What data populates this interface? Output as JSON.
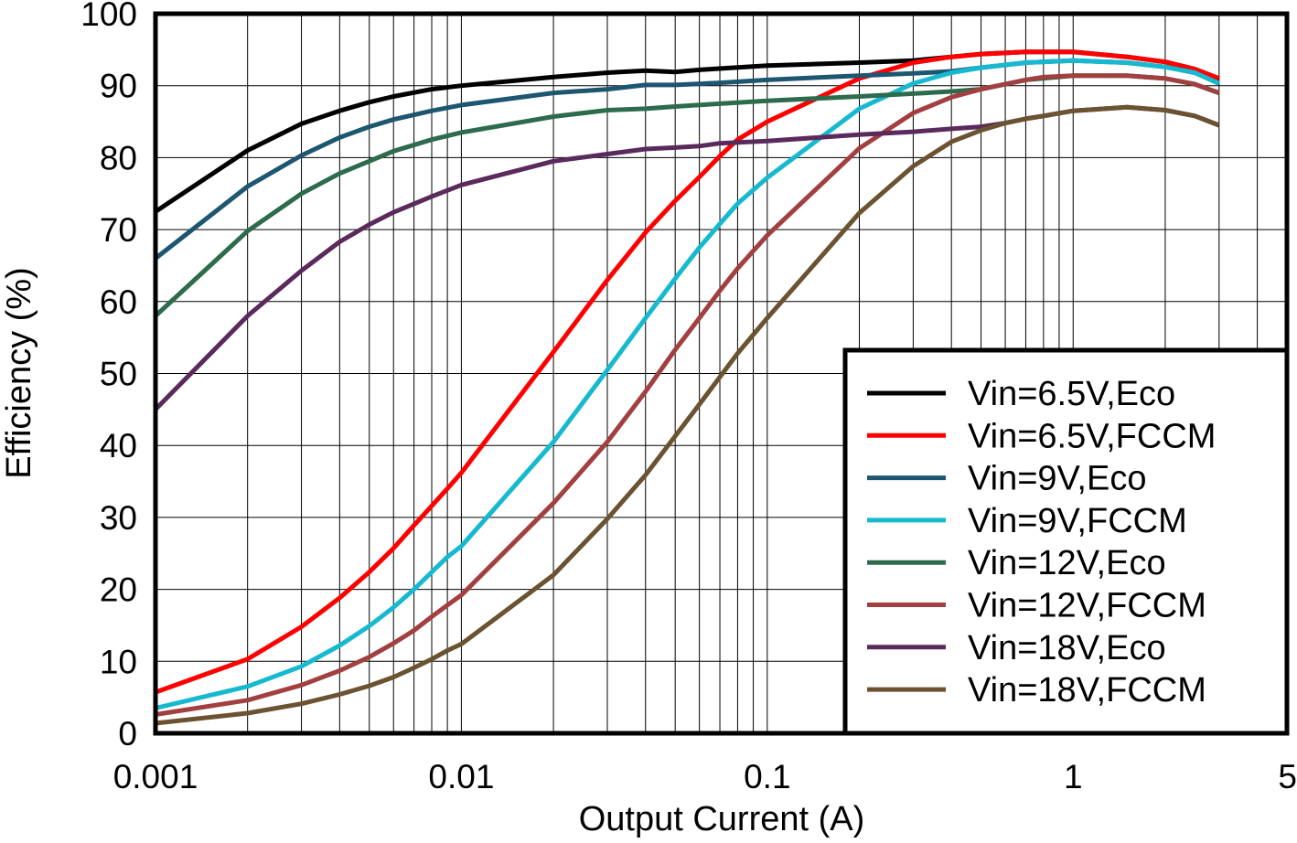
{
  "chart_data": {
    "type": "line",
    "title": "",
    "xlabel": "Output Current (A)",
    "ylabel": "Efficiency (%)",
    "xscale": "log",
    "xlim": [
      0.001,
      5
    ],
    "ylim": [
      0,
      100
    ],
    "grid": true,
    "legend_position": "bottom-right",
    "xticks": [
      {
        "value": 0.001,
        "label": "0.001"
      },
      {
        "value": 0.01,
        "label": "0.01"
      },
      {
        "value": 0.1,
        "label": "0.1"
      },
      {
        "value": 1,
        "label": "1"
      },
      {
        "value": 5,
        "label": "5"
      }
    ],
    "yticks": [
      {
        "value": 0,
        "label": "0"
      },
      {
        "value": 10,
        "label": "10"
      },
      {
        "value": 20,
        "label": "20"
      },
      {
        "value": 30,
        "label": "30"
      },
      {
        "value": 40,
        "label": "40"
      },
      {
        "value": 50,
        "label": "50"
      },
      {
        "value": 60,
        "label": "60"
      },
      {
        "value": 70,
        "label": "70"
      },
      {
        "value": 80,
        "label": "80"
      },
      {
        "value": 90,
        "label": "90"
      },
      {
        "value": 100,
        "label": "100"
      }
    ],
    "series": [
      {
        "name": "Vin=6.5V,Eco",
        "color": "#000000",
        "points": [
          [
            0.001,
            72.5
          ],
          [
            0.002,
            81
          ],
          [
            0.003,
            84.7
          ],
          [
            0.004,
            86.5
          ],
          [
            0.005,
            87.7
          ],
          [
            0.006,
            88.5
          ],
          [
            0.008,
            89.5
          ],
          [
            0.01,
            90
          ],
          [
            0.02,
            91.2
          ],
          [
            0.03,
            91.8
          ],
          [
            0.04,
            92.1
          ],
          [
            0.05,
            91.9
          ],
          [
            0.06,
            92.2
          ],
          [
            0.1,
            92.8
          ],
          [
            0.2,
            93.2
          ],
          [
            0.3,
            93.5
          ],
          [
            0.4,
            94
          ],
          [
            0.5,
            94.4
          ],
          [
            0.7,
            94.7
          ],
          [
            1,
            94.7
          ],
          [
            1.5,
            94
          ],
          [
            2,
            93.3
          ],
          [
            2.5,
            92.3
          ],
          [
            3,
            91
          ]
        ]
      },
      {
        "name": "Vin=6.5V,FCCM",
        "color": "#ff0000",
        "points": [
          [
            0.001,
            5.7
          ],
          [
            0.002,
            10.3
          ],
          [
            0.003,
            14.8
          ],
          [
            0.004,
            18.8
          ],
          [
            0.005,
            22.4
          ],
          [
            0.006,
            25.7
          ],
          [
            0.007,
            28.9
          ],
          [
            0.008,
            31.6
          ],
          [
            0.009,
            34
          ],
          [
            0.01,
            36.2
          ],
          [
            0.02,
            53
          ],
          [
            0.03,
            63
          ],
          [
            0.04,
            69.6
          ],
          [
            0.05,
            74
          ],
          [
            0.06,
            77.3
          ],
          [
            0.07,
            80.2
          ],
          [
            0.08,
            82.5
          ],
          [
            0.1,
            85
          ],
          [
            0.2,
            91
          ],
          [
            0.3,
            93.2
          ],
          [
            0.4,
            94
          ],
          [
            0.5,
            94.4
          ],
          [
            0.7,
            94.7
          ],
          [
            1,
            94.7
          ],
          [
            1.5,
            94
          ],
          [
            2,
            93.3
          ],
          [
            2.5,
            92.3
          ],
          [
            3,
            91
          ]
        ]
      },
      {
        "name": "Vin=9V,Eco",
        "color": "#1d5670",
        "points": [
          [
            0.001,
            66
          ],
          [
            0.002,
            76
          ],
          [
            0.003,
            80.3
          ],
          [
            0.004,
            82.8
          ],
          [
            0.005,
            84.3
          ],
          [
            0.006,
            85.3
          ],
          [
            0.008,
            86.5
          ],
          [
            0.01,
            87.3
          ],
          [
            0.02,
            89
          ],
          [
            0.03,
            89.5
          ],
          [
            0.04,
            90.1
          ],
          [
            0.05,
            90.1
          ],
          [
            0.07,
            90.4
          ],
          [
            0.1,
            90.8
          ],
          [
            0.2,
            91.4
          ],
          [
            0.3,
            91.7
          ],
          [
            0.4,
            92
          ],
          [
            0.5,
            92.5
          ],
          [
            0.7,
            93.2
          ],
          [
            1,
            93.5
          ],
          [
            1.5,
            93.2
          ],
          [
            2,
            92.6
          ],
          [
            2.5,
            91.8
          ],
          [
            3,
            90.3
          ]
        ]
      },
      {
        "name": "Vin=9V,FCCM",
        "color": "#16b9cf",
        "points": [
          [
            0.001,
            3.5
          ],
          [
            0.002,
            6.5
          ],
          [
            0.003,
            9.3
          ],
          [
            0.004,
            12.2
          ],
          [
            0.005,
            14.9
          ],
          [
            0.006,
            17.5
          ],
          [
            0.007,
            20
          ],
          [
            0.008,
            22.4
          ],
          [
            0.009,
            24.5
          ],
          [
            0.01,
            26
          ],
          [
            0.02,
            40.5
          ],
          [
            0.03,
            50.5
          ],
          [
            0.04,
            57.7
          ],
          [
            0.05,
            63.2
          ],
          [
            0.06,
            67.5
          ],
          [
            0.07,
            70.8
          ],
          [
            0.08,
            73.6
          ],
          [
            0.1,
            77.2
          ],
          [
            0.2,
            86.8
          ],
          [
            0.3,
            90.3
          ],
          [
            0.4,
            91.8
          ],
          [
            0.5,
            92.5
          ],
          [
            0.7,
            93.2
          ],
          [
            1,
            93.5
          ],
          [
            1.5,
            93.2
          ],
          [
            2,
            92.6
          ],
          [
            2.5,
            91.8
          ],
          [
            3,
            90.3
          ]
        ]
      },
      {
        "name": "Vin=12V,Eco",
        "color": "#2c6b4c",
        "points": [
          [
            0.001,
            58
          ],
          [
            0.002,
            69.8
          ],
          [
            0.003,
            75
          ],
          [
            0.004,
            77.8
          ],
          [
            0.005,
            79.5
          ],
          [
            0.006,
            80.9
          ],
          [
            0.008,
            82.5
          ],
          [
            0.01,
            83.5
          ],
          [
            0.02,
            85.7
          ],
          [
            0.03,
            86.6
          ],
          [
            0.04,
            86.8
          ],
          [
            0.05,
            87.1
          ],
          [
            0.07,
            87.5
          ],
          [
            0.1,
            87.9
          ],
          [
            0.2,
            88.5
          ],
          [
            0.3,
            88.9
          ],
          [
            0.4,
            89.2
          ],
          [
            0.5,
            89.5
          ],
          [
            0.6,
            90.2
          ],
          [
            0.7,
            90.8
          ],
          [
            1,
            91.4
          ],
          [
            1.5,
            91.4
          ],
          [
            2,
            91
          ],
          [
            2.5,
            90.2
          ],
          [
            3,
            89
          ]
        ]
      },
      {
        "name": "Vin=12V,FCCM",
        "color": "#a23f40",
        "points": [
          [
            0.001,
            2.6
          ],
          [
            0.002,
            4.6
          ],
          [
            0.003,
            6.7
          ],
          [
            0.004,
            8.7
          ],
          [
            0.005,
            10.6
          ],
          [
            0.006,
            12.5
          ],
          [
            0.007,
            14.3
          ],
          [
            0.008,
            16.2
          ],
          [
            0.009,
            17.8
          ],
          [
            0.01,
            19.2
          ],
          [
            0.02,
            32
          ],
          [
            0.03,
            40.5
          ],
          [
            0.04,
            47.5
          ],
          [
            0.05,
            53.3
          ],
          [
            0.06,
            57.7
          ],
          [
            0.07,
            61.5
          ],
          [
            0.08,
            64.6
          ],
          [
            0.1,
            69.2
          ],
          [
            0.2,
            81.3
          ],
          [
            0.3,
            86.2
          ],
          [
            0.4,
            88.4
          ],
          [
            0.5,
            89.5
          ],
          [
            0.6,
            90.2
          ],
          [
            0.7,
            90.8
          ],
          [
            0.8,
            91.2
          ],
          [
            1,
            91.4
          ],
          [
            1.5,
            91.4
          ],
          [
            2,
            91
          ],
          [
            2.5,
            90.2
          ],
          [
            3,
            89
          ]
        ]
      },
      {
        "name": "Vin=18V,Eco",
        "color": "#5a2a5c",
        "points": [
          [
            0.001,
            45
          ],
          [
            0.002,
            58
          ],
          [
            0.003,
            64.3
          ],
          [
            0.004,
            68.3
          ],
          [
            0.005,
            70.7
          ],
          [
            0.006,
            72.4
          ],
          [
            0.008,
            74.6
          ],
          [
            0.01,
            76.2
          ],
          [
            0.02,
            79.5
          ],
          [
            0.03,
            80.5
          ],
          [
            0.04,
            81.2
          ],
          [
            0.05,
            81.4
          ],
          [
            0.06,
            81.6
          ],
          [
            0.07,
            82
          ],
          [
            0.1,
            82.3
          ],
          [
            0.2,
            83.2
          ],
          [
            0.3,
            83.6
          ],
          [
            0.4,
            84
          ],
          [
            0.5,
            84.3
          ],
          [
            0.6,
            84.8
          ],
          [
            0.7,
            85.4
          ],
          [
            0.8,
            85.8
          ],
          [
            1,
            86.5
          ],
          [
            1.5,
            87
          ],
          [
            2,
            86.6
          ],
          [
            2.5,
            85.8
          ],
          [
            3,
            84.5
          ]
        ]
      },
      {
        "name": "Vin=18V,FCCM",
        "color": "#6b5230",
        "points": [
          [
            0.001,
            1.4
          ],
          [
            0.002,
            2.8
          ],
          [
            0.003,
            4.1
          ],
          [
            0.004,
            5.4
          ],
          [
            0.005,
            6.6
          ],
          [
            0.006,
            7.8
          ],
          [
            0.007,
            9.1
          ],
          [
            0.008,
            10.3
          ],
          [
            0.009,
            11.5
          ],
          [
            0.01,
            12.4
          ],
          [
            0.02,
            22
          ],
          [
            0.03,
            29.8
          ],
          [
            0.04,
            35.9
          ],
          [
            0.05,
            41.3
          ],
          [
            0.06,
            45.7
          ],
          [
            0.07,
            49.5
          ],
          [
            0.08,
            52.8
          ],
          [
            0.1,
            57.7
          ],
          [
            0.2,
            72.3
          ],
          [
            0.3,
            78.8
          ],
          [
            0.4,
            82.2
          ],
          [
            0.5,
            83.8
          ],
          [
            0.6,
            84.8
          ],
          [
            0.7,
            85.4
          ],
          [
            0.8,
            85.8
          ],
          [
            1,
            86.5
          ],
          [
            1.5,
            87
          ],
          [
            2,
            86.6
          ],
          [
            2.5,
            85.8
          ],
          [
            3,
            84.5
          ]
        ]
      }
    ]
  }
}
